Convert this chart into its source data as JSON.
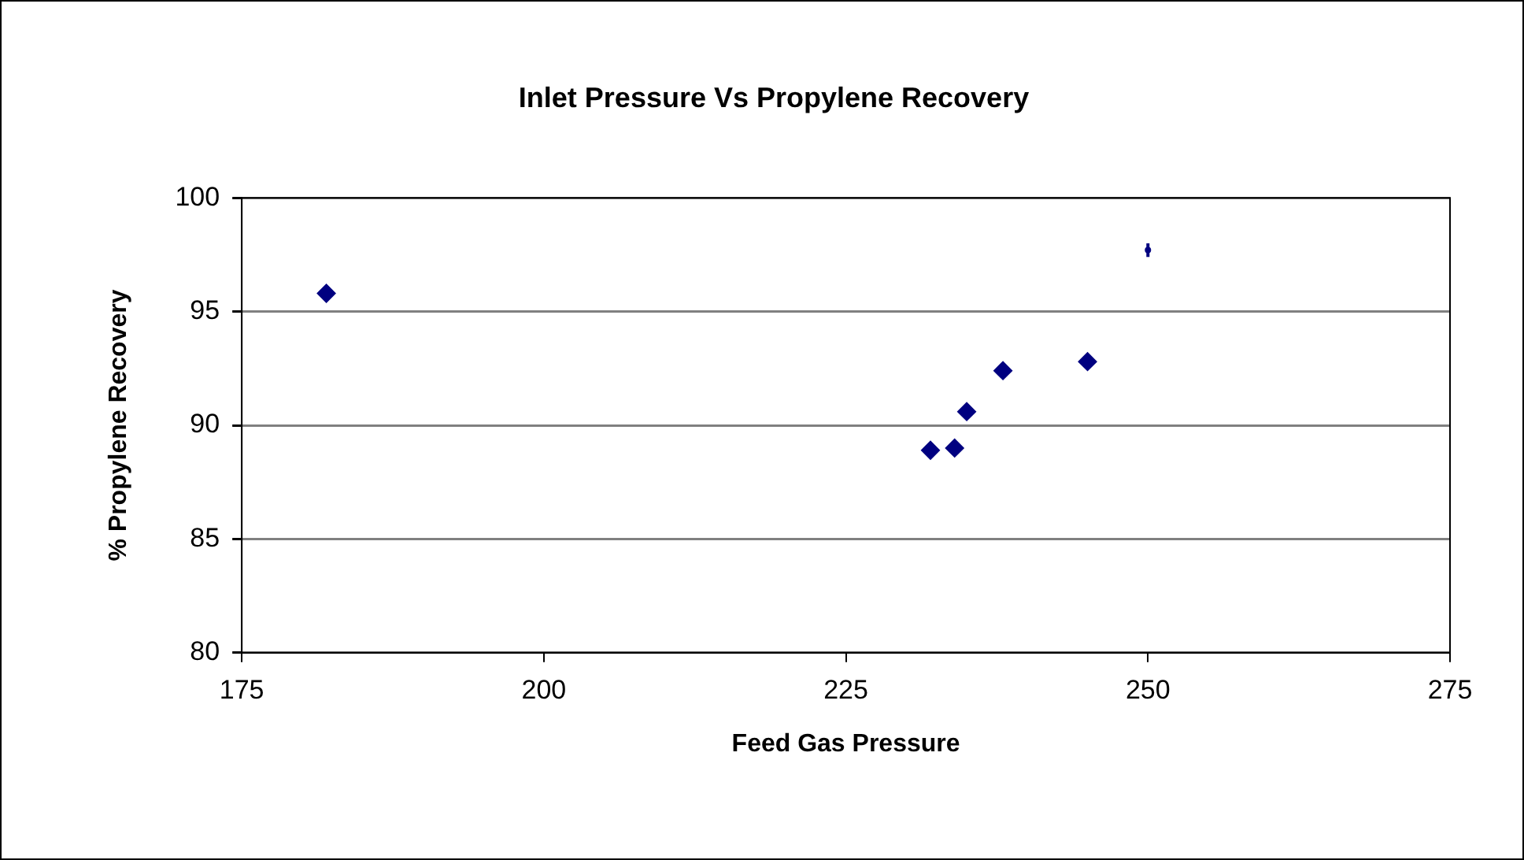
{
  "chart_data": {
    "type": "scatter",
    "title": "Inlet Pressure Vs Propylene Recovery",
    "xlabel": "Feed Gas Pressure",
    "ylabel": "% Propylene Recovery",
    "series": [
      {
        "color": "#000080",
        "x": [
          182,
          232,
          234,
          235,
          238,
          245
        ],
        "values": [
          95.8,
          88.9,
          89.0,
          90.6,
          92.4,
          92.8
        ]
      },
      {
        "color": "#000080",
        "x": [
          250
        ],
        "values": [
          97.7
        ],
        "errors": [
          0.3
        ],
        "marker": "circle"
      }
    ],
    "xlim": [
      175,
      275
    ],
    "xticks": [
      175,
      200,
      225,
      250,
      275
    ],
    "ylim": [
      80,
      100
    ],
    "yticks": [
      80,
      85,
      90,
      95,
      100
    ],
    "grid": "y",
    "marker": "diamond",
    "legend": false
  }
}
